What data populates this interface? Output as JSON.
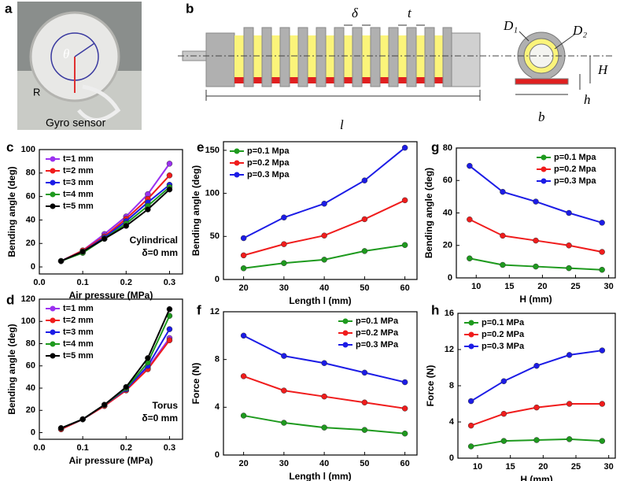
{
  "photo": {
    "panel": "a",
    "labels": {
      "theta": "θ",
      "radius": "R",
      "sensor": "Gyro sensor"
    }
  },
  "diagram": {
    "panel": "b",
    "labels": {
      "delta": "δ",
      "thickness": "t",
      "length": "l",
      "outer_diameter": "D₁",
      "inner_diameter": "D₂",
      "height": "H",
      "base_height": "h",
      "base_width": "b"
    }
  },
  "chart_data": [
    {
      "type": "line",
      "panel": "c",
      "x_label": "Air pressure (MPa)",
      "y_label": "Bending angle (deg)",
      "annotations": [
        "Cylindrical",
        "δ=0 mm"
      ],
      "x": [
        0.05,
        0.1,
        0.15,
        0.2,
        0.25,
        0.3
      ],
      "xlim": [
        0,
        0.33
      ],
      "xticks": [
        {
          "value": 0,
          "label": "0.0"
        },
        0.1,
        0.2,
        0.3
      ],
      "ylim": [
        -6,
        100
      ],
      "yticks": [
        0,
        20,
        40,
        60,
        80,
        100
      ],
      "legend": "upper left",
      "series": [
        {
          "name": "t=1 mm",
          "color": "#9b30f0",
          "values": [
            5,
            14,
            28,
            43,
            62,
            88
          ]
        },
        {
          "name": "t=2 mm",
          "color": "#f01c1c",
          "values": [
            5,
            14,
            26,
            41,
            58,
            78
          ]
        },
        {
          "name": "t=3 mm",
          "color": "#1c1ce6",
          "values": [
            5,
            13,
            25,
            39,
            55,
            70
          ]
        },
        {
          "name": "t=4 mm",
          "color": "#1e9a1e",
          "values": [
            5,
            12,
            24,
            37,
            52,
            68
          ]
        },
        {
          "name": "t=5 mm",
          "color": "#000000",
          "values": [
            5,
            13,
            24,
            35,
            49,
            66
          ]
        }
      ]
    },
    {
      "type": "line",
      "panel": "d",
      "x_label": "Air pressure (MPa)",
      "y_label": "Bending angle (deg)",
      "annotations": [
        "Torus",
        "δ=0 mm"
      ],
      "x": [
        0.05,
        0.1,
        0.15,
        0.2,
        0.25,
        0.3
      ],
      "xlim": [
        0,
        0.33
      ],
      "xticks": [
        {
          "value": 0,
          "label": "0.0"
        },
        0.1,
        0.2,
        0.3
      ],
      "ylim": [
        -6,
        120
      ],
      "yticks": [
        0,
        20,
        40,
        60,
        80,
        100,
        120
      ],
      "legend": "upper left",
      "series": [
        {
          "name": "t=1 mm",
          "color": "#9b30f0",
          "values": [
            3,
            12,
            24,
            38,
            58,
            85
          ]
        },
        {
          "name": "t=2 mm",
          "color": "#f01c1c",
          "values": [
            3,
            12,
            24,
            38,
            57,
            83
          ]
        },
        {
          "name": "t=3 mm",
          "color": "#1c1ce6",
          "values": [
            4,
            12,
            25,
            39,
            60,
            93
          ]
        },
        {
          "name": "t=4 mm",
          "color": "#1e9a1e",
          "values": [
            4,
            12,
            25,
            40,
            63,
            105
          ]
        },
        {
          "name": "t=5 mm",
          "color": "#000000",
          "values": [
            4,
            12,
            25,
            41,
            67,
            111
          ]
        }
      ]
    },
    {
      "type": "line",
      "panel": "e",
      "x_label": "Length l (mm)",
      "y_label": "Bending angle (deg)",
      "x": [
        20,
        30,
        40,
        50,
        60
      ],
      "xlim": [
        15,
        63
      ],
      "xticks": [
        20,
        30,
        40,
        50,
        60
      ],
      "ylim": [
        0,
        160
      ],
      "yticks": [
        0,
        50,
        100,
        150
      ],
      "legend": "upper left",
      "series": [
        {
          "name": "p=0.1 Mpa",
          "color": "#1e9a1e",
          "values": [
            13,
            19,
            23,
            33,
            40
          ]
        },
        {
          "name": "p=0.2 Mpa",
          "color": "#f01c1c",
          "values": [
            28,
            41,
            51,
            70,
            92
          ]
        },
        {
          "name": "p=0.3 Mpa",
          "color": "#1c1ce6",
          "values": [
            48,
            72,
            88,
            115,
            153
          ]
        }
      ]
    },
    {
      "type": "line",
      "panel": "f",
      "x_label": "Length l (mm)",
      "y_label": "Force (N)",
      "x": [
        20,
        30,
        40,
        50,
        60
      ],
      "xlim": [
        15,
        63
      ],
      "xticks": [
        20,
        30,
        40,
        50,
        60
      ],
      "ylim": [
        0,
        12
      ],
      "yticks": [
        0,
        4,
        8,
        12
      ],
      "legend": "upper right",
      "series": [
        {
          "name": "p=0.1 MPa",
          "color": "#1e9a1e",
          "values": [
            3.3,
            2.7,
            2.3,
            2.1,
            1.8
          ]
        },
        {
          "name": "p=0.2 MPa",
          "color": "#f01c1c",
          "values": [
            6.6,
            5.4,
            4.9,
            4.4,
            3.9
          ]
        },
        {
          "name": "p=0.3 MPa",
          "color": "#1c1ce6",
          "values": [
            10,
            8.3,
            7.7,
            6.9,
            6.1
          ]
        }
      ]
    },
    {
      "type": "line",
      "panel": "g",
      "x_label": "H (mm)",
      "y_label": "Bending angle (deg)",
      "x": [
        9,
        14,
        19,
        24,
        29
      ],
      "xlim": [
        7,
        31
      ],
      "xticks": [
        10,
        15,
        20,
        25,
        30
      ],
      "ylim": [
        0,
        80
      ],
      "yticks": [
        0,
        20,
        40,
        60,
        80
      ],
      "legend": "upper right",
      "series": [
        {
          "name": "p=0.1 Mpa",
          "color": "#1e9a1e",
          "values": [
            12,
            8,
            7,
            6,
            5
          ]
        },
        {
          "name": "p=0.2 Mpa",
          "color": "#f01c1c",
          "values": [
            36,
            26,
            23,
            20,
            16
          ]
        },
        {
          "name": "p=0.3 Mpa",
          "color": "#1c1ce6",
          "values": [
            69,
            53,
            47,
            40,
            34
          ]
        }
      ]
    },
    {
      "type": "line",
      "panel": "h",
      "x_label": "H (mm)",
      "y_label": "Force (N)",
      "x": [
        9,
        14,
        19,
        24,
        29
      ],
      "xlim": [
        7,
        31
      ],
      "xticks": [
        10,
        15,
        20,
        25,
        30
      ],
      "ylim": [
        0,
        16
      ],
      "yticks": [
        0,
        4,
        8,
        12,
        16
      ],
      "legend": "upper left",
      "series": [
        {
          "name": "p=0.1 MPa",
          "color": "#1e9a1e",
          "values": [
            1.3,
            1.9,
            2.0,
            2.1,
            1.9
          ]
        },
        {
          "name": "p=0.2 MPa",
          "color": "#f01c1c",
          "values": [
            3.6,
            4.9,
            5.6,
            6.0,
            6.0
          ]
        },
        {
          "name": "p=0.3 MPa",
          "color": "#1c1ce6",
          "values": [
            6.3,
            8.5,
            10.2,
            11.4,
            11.9
          ]
        }
      ]
    }
  ]
}
